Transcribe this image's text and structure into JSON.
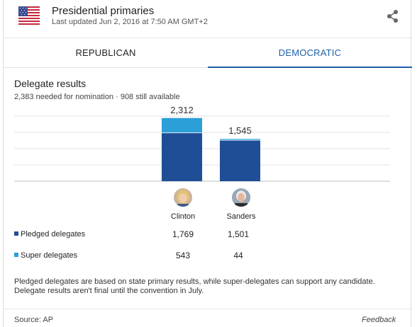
{
  "header": {
    "title": "Presidential primaries",
    "updated": "Last updated Jun 2, 2016 at 7:50 AM GMT+2"
  },
  "icons": {
    "flag": "us-flag-icon",
    "share": "share-icon"
  },
  "tabs": [
    {
      "label": "REPUBLICAN",
      "selected": false
    },
    {
      "label": "DEMOCRATIC",
      "selected": true
    }
  ],
  "section": {
    "title": "Delegate results",
    "subtitle": "2,383 needed for nomination · 908 still available"
  },
  "colors": {
    "pledged": "#1f4e96",
    "super": "#2a9fd8",
    "accent": "#1e5fa8",
    "grid": "#e3e3e3"
  },
  "chart_data": {
    "type": "bar",
    "stacked": true,
    "categories": [
      "Clinton",
      "Sanders"
    ],
    "series": [
      {
        "name": "Pledged delegates",
        "values": [
          1769,
          1501
        ]
      },
      {
        "name": "Super delegates",
        "values": [
          543,
          44
        ]
      }
    ],
    "totals": [
      "2,312",
      "1,545"
    ],
    "ylim": [
      0,
      2383
    ],
    "grid": true
  },
  "candidates": [
    {
      "name": "Clinton",
      "pledged": "1,769",
      "super": "543"
    },
    {
      "name": "Sanders",
      "pledged": "1,501",
      "super": "44"
    }
  ],
  "rows": {
    "pledged_label": "Pledged delegates",
    "super_label": "Super delegates"
  },
  "note": "Pledged delegates are based on state primary results, while super-delegates can support any candidate. Delegate results aren't final until the convention in July.",
  "footer": {
    "source": "Source: AP",
    "feedback": "Feedback"
  }
}
